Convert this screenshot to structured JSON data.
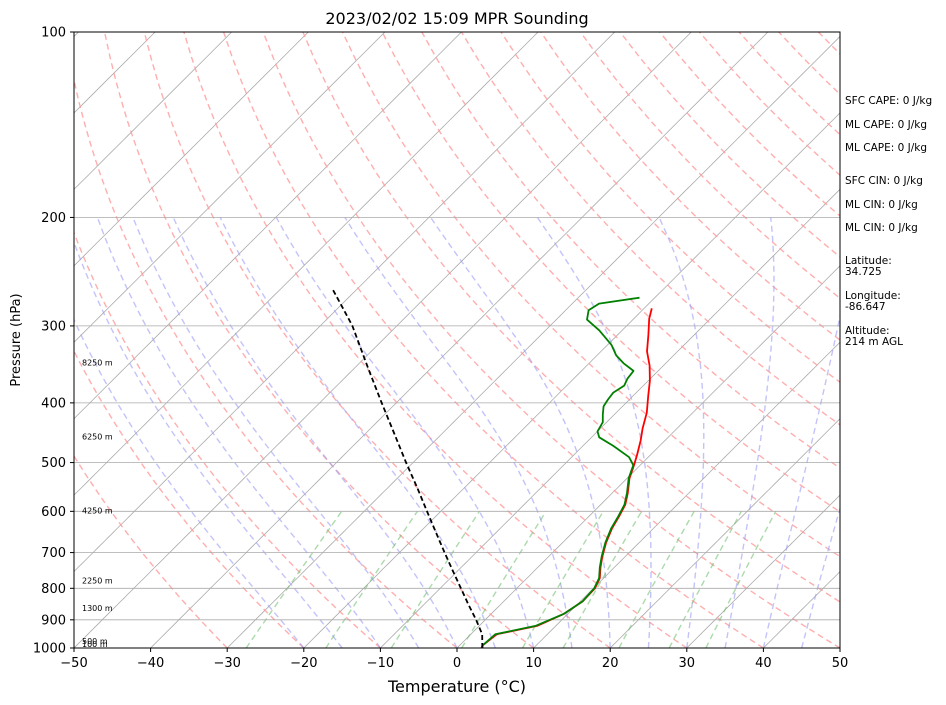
{
  "chart_data": {
    "type": "line",
    "title": "2023/02/02 15:09 MPR Sounding",
    "xlabel": "Temperature (°C)",
    "ylabel": "Pressure (hPa)",
    "xlim": [
      -50,
      50
    ],
    "ylim": [
      1000,
      100
    ],
    "y_scale": "log",
    "grid": true,
    "x_ticks": [
      -50,
      -40,
      -30,
      -20,
      -10,
      0,
      10,
      20,
      30,
      40,
      50
    ],
    "y_ticks": [
      100,
      200,
      300,
      400,
      500,
      600,
      700,
      800,
      900,
      1000
    ],
    "y_tick_labels": [
      "100",
      "200",
      "300",
      "400",
      "500",
      "600",
      "700",
      "800",
      "900",
      "1000"
    ],
    "x_tick_labels": [
      "−50",
      "−40",
      "−30",
      "−20",
      "−10",
      "0",
      "10",
      "20",
      "30",
      "40",
      "50"
    ],
    "height_labels": [
      {
        "p": 1000,
        "label": "100 m"
      },
      {
        "p": 978,
        "label": "500 m"
      },
      {
        "p": 865,
        "label": "1300 m"
      },
      {
        "p": 780,
        "label": "2250 m"
      },
      {
        "p": 600,
        "label": "4250 m"
      },
      {
        "p": 455,
        "label": "6250 m"
      },
      {
        "p": 345,
        "label": "8250 m"
      }
    ],
    "info_lines": [
      "SFC CAPE: 0 J/kg",
      "ML CAPE: 0 J/kg",
      "ML CAPE: 0 J/kg",
      "SFC CIN: 0 J/kg",
      "ML CIN: 0 J/kg",
      "ML CIN: 0 J/kg",
      "Latitude:",
      "34.725",
      "Longitude:",
      "-86.647",
      "Altitude:",
      "214 m AGL"
    ],
    "series": [
      {
        "key": "temperature",
        "color": "#ff0000",
        "points": [
          {
            "T": 3.2,
            "p": 1000
          },
          {
            "T": 3.0,
            "p": 990
          },
          {
            "T": 3.4,
            "p": 950
          },
          {
            "T": 7.6,
            "p": 920
          },
          {
            "T": 9.5,
            "p": 880
          },
          {
            "T": 10.3,
            "p": 840
          },
          {
            "T": 10.2,
            "p": 800
          },
          {
            "T": 9.5,
            "p": 770
          },
          {
            "T": 8.2,
            "p": 740
          },
          {
            "T": 7.0,
            "p": 710
          },
          {
            "T": 5.7,
            "p": 675
          },
          {
            "T": 4.6,
            "p": 640
          },
          {
            "T": 3.9,
            "p": 610
          },
          {
            "T": 3.2,
            "p": 585
          },
          {
            "T": 2.0,
            "p": 560
          },
          {
            "T": 0.3,
            "p": 530
          },
          {
            "T": -0.8,
            "p": 505
          },
          {
            "T": -1.8,
            "p": 485
          },
          {
            "T": -3.2,
            "p": 460
          },
          {
            "T": -4.5,
            "p": 440
          },
          {
            "T": -6.0,
            "p": 415
          },
          {
            "T": -8.0,
            "p": 390
          },
          {
            "T": -9.8,
            "p": 368
          },
          {
            "T": -11.8,
            "p": 348
          },
          {
            "T": -14.0,
            "p": 330
          },
          {
            "T": -16.0,
            "p": 310
          },
          {
            "T": -18.0,
            "p": 292
          },
          {
            "T": -19.0,
            "p": 281
          }
        ]
      },
      {
        "key": "dewpoint",
        "color": "#008000",
        "points": [
          {
            "T": 3.3,
            "p": 1000
          },
          {
            "T": 3.0,
            "p": 990
          },
          {
            "T": 3.2,
            "p": 950
          },
          {
            "T": 7.4,
            "p": 920
          },
          {
            "T": 9.5,
            "p": 880
          },
          {
            "T": 10.3,
            "p": 840
          },
          {
            "T": 10.1,
            "p": 800
          },
          {
            "T": 9.4,
            "p": 770
          },
          {
            "T": 8.1,
            "p": 740
          },
          {
            "T": 6.9,
            "p": 710
          },
          {
            "T": 5.6,
            "p": 675
          },
          {
            "T": 4.5,
            "p": 640
          },
          {
            "T": 3.8,
            "p": 610
          },
          {
            "T": 3.1,
            "p": 585
          },
          {
            "T": 1.9,
            "p": 560
          },
          {
            "T": 0.2,
            "p": 530
          },
          {
            "T": -0.9,
            "p": 505
          },
          {
            "T": -2.5,
            "p": 490
          },
          {
            "T": -6.0,
            "p": 470
          },
          {
            "T": -9.0,
            "p": 455
          },
          {
            "T": -10.0,
            "p": 445
          },
          {
            "T": -10.5,
            "p": 430
          },
          {
            "T": -11.5,
            "p": 418
          },
          {
            "T": -12.5,
            "p": 405
          },
          {
            "T": -12.8,
            "p": 395
          },
          {
            "T": -13.0,
            "p": 385
          },
          {
            "T": -12.5,
            "p": 375
          },
          {
            "T": -13.0,
            "p": 365
          },
          {
            "T": -13.2,
            "p": 355
          },
          {
            "T": -15.5,
            "p": 345
          },
          {
            "T": -17.5,
            "p": 335
          },
          {
            "T": -19.5,
            "p": 322
          },
          {
            "T": -23.0,
            "p": 305
          },
          {
            "T": -26.0,
            "p": 293
          },
          {
            "T": -27.0,
            "p": 283
          },
          {
            "T": -26.5,
            "p": 276
          },
          {
            "T": -22.0,
            "p": 270
          }
        ]
      },
      {
        "key": "parcel",
        "color": "#000000",
        "dashed": true,
        "points": [
          {
            "T": 3.3,
            "p": 1000
          },
          {
            "T": 1.5,
            "p": 950
          },
          {
            "T": -1.2,
            "p": 900
          },
          {
            "T": -4.2,
            "p": 850
          },
          {
            "T": -7.3,
            "p": 800
          },
          {
            "T": -10.6,
            "p": 750
          },
          {
            "T": -14.1,
            "p": 700
          },
          {
            "T": -17.8,
            "p": 650
          },
          {
            "T": -21.8,
            "p": 600
          },
          {
            "T": -26.1,
            "p": 550
          },
          {
            "T": -30.9,
            "p": 500
          },
          {
            "T": -36.1,
            "p": 450
          },
          {
            "T": -41.9,
            "p": 400
          },
          {
            "T": -48.4,
            "p": 350
          },
          {
            "T": -55.8,
            "p": 300
          },
          {
            "T": -59.5,
            "p": 280
          },
          {
            "T": -63.5,
            "p": 260
          }
        ]
      }
    ]
  }
}
